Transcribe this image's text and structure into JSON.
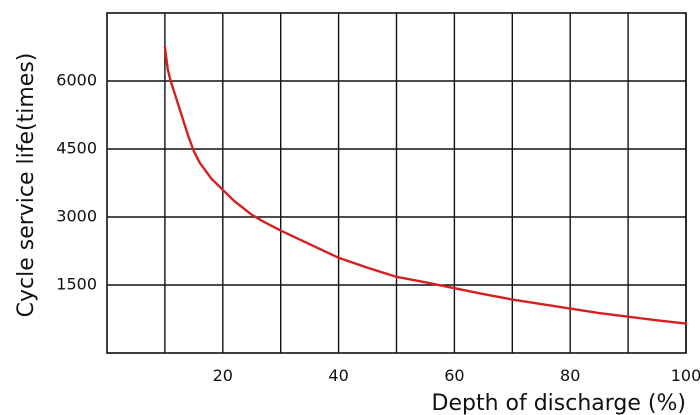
{
  "chart_data": {
    "type": "line",
    "title": "",
    "xlabel": "Depth of discharge (%)",
    "ylabel": "Cycle service life(times)",
    "xlim": [
      0,
      100
    ],
    "ylim": [
      0,
      7500
    ],
    "x_grid": [
      10,
      20,
      30,
      40,
      50,
      60,
      70,
      80,
      90,
      100
    ],
    "y_grid": [
      1500,
      3000,
      4500,
      6000
    ],
    "x_ticks": [
      "20",
      "40",
      "60",
      "80",
      "100"
    ],
    "x_tick_values": [
      20,
      40,
      60,
      80,
      100
    ],
    "y_ticks": [
      "1500",
      "3000",
      "4500",
      "6000"
    ],
    "y_tick_values": [
      1500,
      3000,
      4500,
      6000
    ],
    "grid": true,
    "series": [
      {
        "color": "#d42020",
        "x": [
          10.0,
          10.3,
          10.5,
          11,
          12,
          13,
          14,
          15,
          16,
          18,
          20,
          22,
          25,
          27,
          30,
          35,
          40,
          45,
          50,
          55,
          60,
          65,
          70,
          75,
          80,
          85,
          90,
          95,
          100
        ],
        "y": [
          6750,
          6450,
          6250,
          6000,
          5600,
          5200,
          4800,
          4450,
          4200,
          3850,
          3600,
          3350,
          3050,
          2900,
          2700,
          2400,
          2100,
          1880,
          1680,
          1560,
          1430,
          1300,
          1180,
          1080,
          980,
          880,
          800,
          720,
          650
        ]
      }
    ]
  }
}
